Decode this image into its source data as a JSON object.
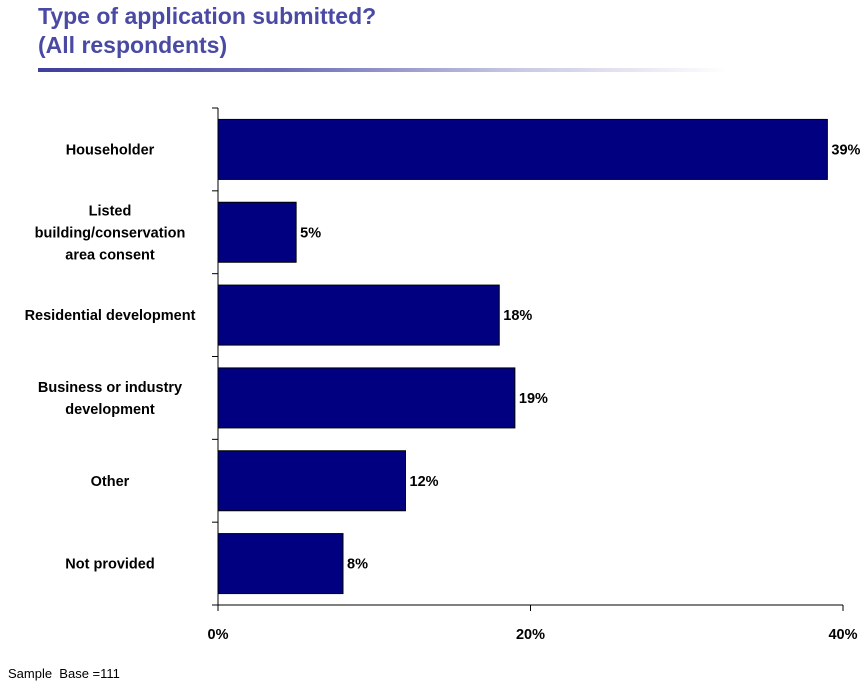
{
  "title_lines": [
    "Type of application submitted?",
    "(All respondents)"
  ],
  "footnote": "Sample  Base =111",
  "colors": {
    "bar": "#000080",
    "title": "#4a4aa4"
  },
  "chart_data": {
    "type": "bar",
    "orientation": "horizontal",
    "categories": [
      [
        "Householder"
      ],
      [
        "Listed",
        "building/conservation",
        "area consent"
      ],
      [
        "Residential development"
      ],
      [
        "Business or industry",
        "development"
      ],
      [
        "Other"
      ],
      [
        "Not provided"
      ]
    ],
    "values": [
      39,
      5,
      18,
      19,
      12,
      8
    ],
    "value_labels": [
      "39%",
      "5%",
      "18%",
      "19%",
      "12%",
      "8%"
    ],
    "x_ticks": [
      0,
      20,
      40
    ],
    "x_tick_labels": [
      "0%",
      "20%",
      "40%"
    ],
    "xlim": [
      0,
      40
    ],
    "grid": false
  }
}
